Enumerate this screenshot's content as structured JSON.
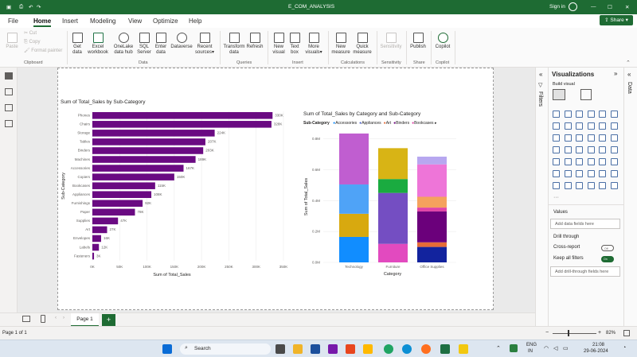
{
  "titlebar": {
    "title": "E_COM_ANALYSIS",
    "signin": "Sign in"
  },
  "menu": {
    "file": "File",
    "home": "Home",
    "insert": "Insert",
    "modeling": "Modeling",
    "view": "View",
    "optimize": "Optimize",
    "help": "Help",
    "share": "Share"
  },
  "ribbon": {
    "paste": "Paste",
    "cut": "Cut",
    "copy": "Copy",
    "format_painter": "Format painter",
    "get_data": [
      "Get",
      "data"
    ],
    "excel": [
      "Excel",
      "workbook"
    ],
    "onelake": [
      "OneLake",
      "data hub"
    ],
    "sql": [
      "SQL",
      "Server"
    ],
    "enter_data": [
      "Enter",
      "data"
    ],
    "dataverse": [
      "Dataverse",
      ""
    ],
    "recent": [
      "Recent",
      "sources"
    ],
    "transform": [
      "Transform",
      "data"
    ],
    "refresh": [
      "Refresh",
      ""
    ],
    "new_visual": [
      "New",
      "visual"
    ],
    "text_box": [
      "Text",
      "box"
    ],
    "more_visuals": [
      "More",
      "visuals"
    ],
    "new_measure": [
      "New",
      "measure"
    ],
    "quick_measure": [
      "Quick",
      "measure"
    ],
    "sensitivity": [
      "Sensitivity",
      ""
    ],
    "publish": [
      "Publish",
      ""
    ],
    "copilot": [
      "Copilot",
      ""
    ],
    "groups": {
      "clipboard": "Clipboard",
      "data": "Data",
      "queries": "Queries",
      "insert": "Insert",
      "calculations": "Calculations",
      "sensitivity": "Sensitivity",
      "share": "Share",
      "copilot": "Copilot"
    }
  },
  "bar_chart_title": "Sum of Total_Sales by Sub-Category",
  "stacked_chart_title": "Sum of Total_Sales by Category and Sub-Category",
  "stacked_legend_title": "Sub-Category",
  "chart_data": [
    {
      "type": "bar",
      "orientation": "horizontal",
      "title": "Sum of Total_Sales by Sub-Category",
      "xlabel": "Sum of Total_Sales",
      "ylabel": "Sub-Category",
      "categories": [
        "Phones",
        "Chairs",
        "Storage",
        "Tables",
        "Binders",
        "Machines",
        "Accessories",
        "Copiers",
        "Bookcases",
        "Appliances",
        "Furnishings",
        "Paper",
        "Supplies",
        "Art",
        "Envelopes",
        "Labels",
        "Fasteners"
      ],
      "values": [
        330000,
        328000,
        224000,
        207000,
        203000,
        189000,
        167000,
        150000,
        115000,
        108000,
        92000,
        78000,
        47000,
        27000,
        16000,
        12000,
        3000
      ],
      "data_labels": [
        "330K",
        "328K",
        "224K",
        "207K",
        "203K",
        "189K",
        "167K",
        "150K",
        "115K",
        "108K",
        "92K",
        "78K",
        "47K",
        "27K",
        "16K",
        "12K",
        "3K"
      ],
      "xticks": [
        "0K",
        "50K",
        "100K",
        "150K",
        "200K",
        "250K",
        "300K",
        "350K"
      ],
      "xlim": [
        0,
        350000
      ],
      "color": "#6a0a82",
      "grid": true
    },
    {
      "type": "bar",
      "stacked": true,
      "title": "Sum of Total_Sales by Category and Sub-Category",
      "xlabel": "Category",
      "ylabel": "Sum of Total_Sales",
      "categories": [
        "Technology",
        "Furniture",
        "Office Supplies"
      ],
      "yticks": [
        "0.0M",
        "0.2M",
        "0.4M",
        "0.6M",
        "0.8M"
      ],
      "ylim": [
        0,
        0.85
      ],
      "legend": [
        "Accessories",
        "Appliances",
        "Art",
        "Binders",
        "Bookcases"
      ],
      "series": [
        {
          "name": "Technology",
          "color": "#118dff",
          "values": [
            0.165,
            0,
            0
          ]
        },
        {
          "name": "Technology",
          "color": "#d8a90f",
          "values": [
            0.15,
            0,
            0
          ]
        },
        {
          "name": "Technology",
          "color": "#4fa3f7",
          "values": [
            0.19,
            0,
            0
          ]
        },
        {
          "name": "Technology",
          "color": "#c05ed0",
          "values": [
            0.33,
            0,
            0
          ]
        },
        {
          "name": "Furniture",
          "color": "#e24abf",
          "values": [
            0,
            0.12,
            0
          ]
        },
        {
          "name": "Furniture",
          "color": "#744ec2",
          "values": [
            0,
            0.33,
            0
          ]
        },
        {
          "name": "Furniture",
          "color": "#1aab40",
          "values": [
            0,
            0.09,
            0
          ]
        },
        {
          "name": "Furniture",
          "color": "#d8b415",
          "values": [
            0,
            0.2,
            0
          ]
        },
        {
          "name": "Office Supplies",
          "color": "#12239e",
          "values": [
            0,
            0,
            0.1
          ]
        },
        {
          "name": "Office Supplies",
          "color": "#e66c37",
          "values": [
            0,
            0,
            0.03
          ]
        },
        {
          "name": "Office Supplies",
          "color": "#6b007b",
          "values": [
            0,
            0,
            0.2
          ]
        },
        {
          "name": "Office Supplies",
          "color": "#e044a7",
          "values": [
            0,
            0,
            0.025
          ]
        },
        {
          "name": "Office Supplies",
          "color": "#f5a25d",
          "values": [
            0,
            0,
            0.07
          ]
        },
        {
          "name": "Office Supplies",
          "color": "#ee75d8",
          "values": [
            0,
            0,
            0.21
          ]
        },
        {
          "name": "Office Supplies",
          "color": "#b7a7f0",
          "values": [
            0,
            0,
            0.05
          ]
        }
      ],
      "legend_colors": [
        "#118dff",
        "#4a5ec7",
        "#e66c37",
        "#6b007b",
        "#e044a7"
      ]
    }
  ],
  "panes": {
    "filters": "Filters",
    "visualizations": "Visualizations",
    "build_visual": "Build visual",
    "data": "Data",
    "values": "Values",
    "add_data_fields": "Add data fields here",
    "drill_through": "Drill through",
    "cross_report": "Cross-report",
    "cross_report_state": "Off",
    "keep_all_filters": "Keep all filters",
    "keep_all_filters_state": "On",
    "add_drill_through": "Add drill-through fields here"
  },
  "pagebar": {
    "tab": "Page 1",
    "add": "+"
  },
  "status": {
    "page": "Page 1 of 1",
    "zoom": "82%"
  },
  "taskbar": {
    "search": "Search",
    "lang1": "ENG",
    "lang2": "IN",
    "time": "21:08",
    "date": "29-06-2024"
  }
}
